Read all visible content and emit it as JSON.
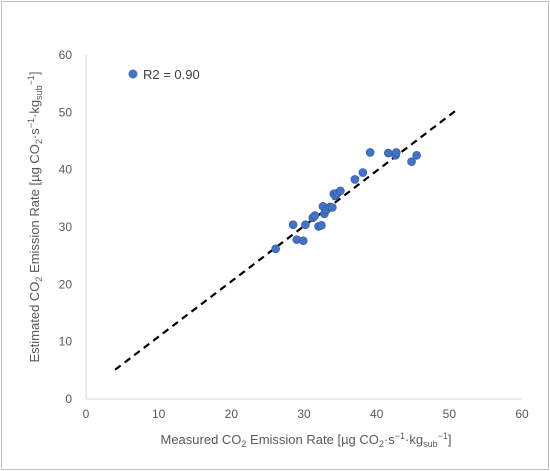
{
  "chart_data": {
    "type": "scatter",
    "xlabel": {
      "pre": "Measured CO",
      "sub1": "2",
      "mid": " Emission Rate [µg CO",
      "sub2": "2",
      "rest": "·s",
      "sup1": "−1",
      "dot": "·kg",
      "sub3": "sub",
      "sup2": "−1",
      "end": "]"
    },
    "ylabel": {
      "pre": "Estimated CO",
      "sub1": "2",
      "mid": " Emission Rate [µg CO",
      "sub2": "2",
      "rest": "·s",
      "sup1": "−1",
      "dot": "·kg",
      "sub3": "sub",
      "sup2": "−1",
      "end": "]"
    },
    "xlim": [
      0,
      60
    ],
    "ylim": [
      0,
      60
    ],
    "xticks": [
      0,
      10,
      20,
      30,
      40,
      50,
      60
    ],
    "yticks": [
      0,
      10,
      20,
      30,
      40,
      50,
      60
    ],
    "grid": false,
    "legend": {
      "label": "R2 = 0.90",
      "placement": "top-left"
    },
    "colors": {
      "points": "#4472c4",
      "trend": "#000000",
      "axis": "#d9d9d9"
    },
    "trendline": {
      "x": [
        4,
        51
      ],
      "y": [
        5.1,
        50.4
      ],
      "style": "dashed"
    },
    "points": [
      {
        "x": 26.1,
        "y": 26.2
      },
      {
        "x": 28.5,
        "y": 30.4
      },
      {
        "x": 29.0,
        "y": 27.8
      },
      {
        "x": 29.9,
        "y": 27.6
      },
      {
        "x": 30.2,
        "y": 30.4
      },
      {
        "x": 31.2,
        "y": 31.6
      },
      {
        "x": 31.5,
        "y": 32.0
      },
      {
        "x": 32.0,
        "y": 30.1
      },
      {
        "x": 32.4,
        "y": 30.3
      },
      {
        "x": 32.6,
        "y": 33.6
      },
      {
        "x": 32.8,
        "y": 32.3
      },
      {
        "x": 33.1,
        "y": 33.0
      },
      {
        "x": 33.6,
        "y": 33.5
      },
      {
        "x": 33.9,
        "y": 33.4
      },
      {
        "x": 34.1,
        "y": 35.8
      },
      {
        "x": 34.3,
        "y": 35.4
      },
      {
        "x": 34.6,
        "y": 35.9
      },
      {
        "x": 35.0,
        "y": 36.3
      },
      {
        "x": 37.0,
        "y": 38.3
      },
      {
        "x": 38.1,
        "y": 39.5
      },
      {
        "x": 39.1,
        "y": 43.0
      },
      {
        "x": 41.6,
        "y": 42.9
      },
      {
        "x": 42.6,
        "y": 42.5
      },
      {
        "x": 42.7,
        "y": 43.0
      },
      {
        "x": 44.8,
        "y": 41.4
      },
      {
        "x": 45.5,
        "y": 42.5
      }
    ]
  }
}
